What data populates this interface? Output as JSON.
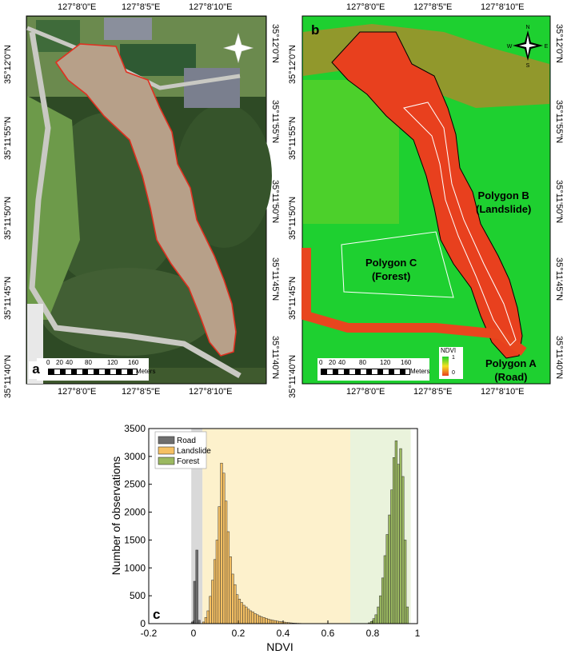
{
  "panel_a": {
    "label": "a",
    "top_ticks": [
      "127°8'0\"E",
      "127°8'5\"E",
      "127°8'10\"E"
    ],
    "bottom_ticks": [
      "127°8'0\"E",
      "127°8'5\"E",
      "127°8'10\"E"
    ],
    "left_ticks": [
      "35°12'0\"N",
      "35°11'55\"N",
      "35°11'50\"N",
      "35°11'45\"N",
      "35°11'40\"N"
    ],
    "right_ticks": [
      "35°12'0\"N",
      "35°11'55\"N",
      "35°11'50\"N",
      "35°11'45\"N",
      "35°11'40\"N"
    ],
    "scale_ticks": [
      "0",
      "20",
      "40",
      "80",
      "120",
      "160"
    ],
    "scale_unit": "Meters",
    "compass": [
      "N",
      "E",
      "S",
      "W"
    ]
  },
  "panel_b": {
    "label": "b",
    "top_ticks": [
      "127°8'0\"E",
      "127°8'5\"E",
      "127°8'10\"E"
    ],
    "bottom_ticks": [
      "127°8'0\"E",
      "127°8'5\"E",
      "127°8'10\"E"
    ],
    "left_ticks": [
      "35°12'0\"N",
      "35°11'55\"N",
      "35°11'50\"N",
      "35°11'45\"N",
      "35°11'40\"N"
    ],
    "right_ticks": [
      "35°12'0\"N",
      "35°11'55\"N",
      "35°11'50\"N",
      "35°11'45\"N",
      "35°11'40\"N"
    ],
    "scale_ticks": [
      "0",
      "20",
      "40",
      "80",
      "120",
      "160"
    ],
    "scale_unit": "Meters",
    "compass": [
      "N",
      "E",
      "S",
      "W"
    ],
    "legend": {
      "title": "NDVI",
      "max": "1",
      "min": "0"
    },
    "polygon_b": [
      "Polygon B",
      "(Landslide)"
    ],
    "polygon_c": [
      "Polygon C",
      "(Forest)"
    ],
    "polygon_a": [
      "Polygon A",
      "(Road)"
    ]
  },
  "chart_data": {
    "type": "bar",
    "panel_label": "c",
    "xlabel": "NDVI",
    "ylabel": "Number of observations",
    "xlim": [
      -0.2,
      1
    ],
    "ylim": [
      0,
      3500
    ],
    "xticks": [
      -0.2,
      0,
      0.2,
      0.4,
      0.6,
      0.8,
      1
    ],
    "xtick_labels": [
      "-0.2",
      "0",
      "0.2",
      "0.4",
      "0.6",
      "0.8",
      "1"
    ],
    "yticks": [
      0,
      500,
      1000,
      1500,
      2000,
      2500,
      3000,
      3500
    ],
    "bin_width": 0.01,
    "legend_position": "top-left",
    "shaded_ranges": [
      {
        "from": -0.01,
        "to": 0.04,
        "color": "#d9d9d9"
      },
      {
        "from": 0.04,
        "to": 0.7,
        "color": "#fdf1cc"
      },
      {
        "from": 0.7,
        "to": 0.97,
        "color": "#eaf3dc"
      }
    ],
    "series": [
      {
        "name": "Road",
        "color": "#6e6e6e",
        "bins": [
          -0.01,
          0.0,
          0.01,
          0.02,
          0.03
        ],
        "values": [
          30,
          760,
          1320,
          60,
          0
        ]
      },
      {
        "name": "Landslide",
        "color": "#f5c063",
        "bins": [
          0.04,
          0.05,
          0.06,
          0.07,
          0.08,
          0.09,
          0.1,
          0.11,
          0.12,
          0.13,
          0.14,
          0.15,
          0.16,
          0.17,
          0.18,
          0.19,
          0.2,
          0.21,
          0.22,
          0.23,
          0.24,
          0.25,
          0.26,
          0.27,
          0.28,
          0.29,
          0.3,
          0.31,
          0.32,
          0.33,
          0.34,
          0.35,
          0.36,
          0.37,
          0.38,
          0.39,
          0.4,
          0.41,
          0.42,
          0.43,
          0.44,
          0.45,
          0.46,
          0.47,
          0.48,
          0.49,
          0.5
        ],
        "values": [
          30,
          110,
          230,
          490,
          780,
          1150,
          1500,
          2100,
          2880,
          2700,
          2200,
          1650,
          1200,
          890,
          700,
          520,
          440,
          380,
          330,
          300,
          260,
          230,
          210,
          180,
          160,
          140,
          120,
          110,
          95,
          80,
          70,
          60,
          55,
          45,
          40,
          32,
          28,
          22,
          18,
          14,
          10,
          8,
          6,
          5,
          3,
          2,
          1
        ]
      },
      {
        "name": "Forest",
        "color": "#9bb960",
        "bins": [
          0.78,
          0.79,
          0.8,
          0.81,
          0.82,
          0.83,
          0.84,
          0.85,
          0.86,
          0.87,
          0.88,
          0.89,
          0.9,
          0.91,
          0.92,
          0.93,
          0.94,
          0.95
        ],
        "values": [
          15,
          40,
          90,
          160,
          300,
          500,
          820,
          1220,
          1600,
          1950,
          2400,
          2980,
          3280,
          2860,
          3140,
          2640,
          1500,
          300
        ]
      }
    ]
  }
}
